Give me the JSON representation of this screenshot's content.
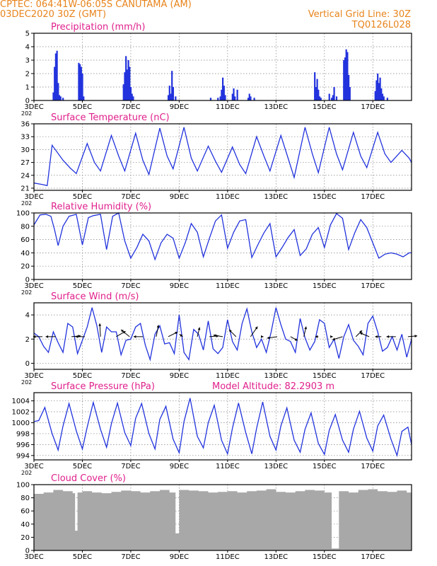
{
  "header": {
    "station": "CPTEC:   064:41W-06:05S   CANUTAMA (AM)",
    "date": "03DEC2020 30Z (GMT)",
    "grid_line": "Vertical Grid Line: 30Z",
    "code": "TQ0126L028",
    "model_altitude": "Model Altitude: 82.2903 m"
  },
  "colors": {
    "line": "#2233dd",
    "title": "#e0208c",
    "header": "#e8841c",
    "cloud": "#a8a8a8",
    "grid": "#808080"
  },
  "x_ticks": [
    "3DEC",
    "5DEC",
    "7DEC",
    "9DEC",
    "11DEC",
    "13DEC",
    "15DEC",
    "17DEC"
  ],
  "stub_label": "202",
  "chart_data": [
    {
      "type": "bar",
      "title": "Precipitation (mm/h)",
      "xlim": [
        0,
        15.6
      ],
      "ylim": [
        0,
        5
      ],
      "yticks": [
        "0",
        "1",
        "2",
        "3",
        "4",
        "5"
      ],
      "x": [
        0.8,
        0.85,
        0.9,
        0.95,
        1.0,
        1.05,
        1.1,
        1.2,
        1.85,
        1.9,
        1.95,
        2.0,
        2.05,
        3.7,
        3.75,
        3.8,
        3.85,
        3.9,
        3.95,
        4.0,
        4.05,
        4.1,
        5.55,
        5.6,
        5.65,
        5.7,
        5.75,
        5.85,
        7.3,
        7.6,
        7.7,
        7.75,
        7.8,
        7.85,
        7.9,
        8.2,
        8.25,
        8.3,
        8.4,
        8.85,
        8.9,
        8.95,
        9.1,
        11.6,
        11.65,
        11.7,
        11.75,
        11.8,
        11.85,
        12.2,
        12.3,
        12.35,
        12.4,
        12.5,
        12.8,
        12.85,
        12.9,
        12.95,
        13.0,
        13.05,
        14.1,
        14.15,
        14.2,
        14.25,
        14.3,
        14.35,
        14.4,
        14.45,
        14.6
      ],
      "values": [
        0.6,
        2.5,
        3.5,
        3.7,
        1.3,
        0.4,
        0.3,
        0.2,
        2.8,
        2.7,
        2.5,
        2.0,
        0.3,
        1.2,
        2.1,
        3.3,
        2.3,
        3.0,
        2.5,
        1.0,
        0.5,
        0.3,
        0.4,
        1.1,
        0.5,
        2.2,
        1.0,
        0.3,
        0.2,
        0.2,
        0.3,
        0.8,
        1.7,
        1.1,
        0.4,
        0.5,
        0.9,
        0.3,
        0.8,
        0.2,
        0.5,
        0.3,
        0.2,
        2.1,
        1.0,
        1.6,
        0.8,
        0.3,
        0.2,
        0.5,
        0.2,
        0.4,
        1.0,
        0.3,
        3.0,
        3.2,
        3.8,
        3.6,
        1.9,
        1.0,
        0.7,
        1.5,
        2.0,
        1.3,
        1.7,
        0.9,
        0.5,
        0.3,
        0.2
      ]
    },
    {
      "type": "line",
      "title": "Surface Temperature (nC)",
      "xlim": [
        0,
        15.6
      ],
      "ylim": [
        20.5,
        36
      ],
      "yticks": [
        "21",
        "24",
        "27",
        "30",
        "33",
        "36"
      ],
      "x": [
        0.0,
        0.3,
        0.55,
        0.75,
        1.2,
        1.5,
        1.75,
        2.2,
        2.5,
        2.75,
        3.2,
        3.5,
        3.75,
        4.2,
        4.5,
        4.75,
        5.2,
        5.5,
        5.75,
        6.2,
        6.5,
        6.75,
        7.2,
        7.5,
        7.75,
        8.2,
        8.5,
        8.75,
        9.2,
        9.5,
        9.75,
        10.2,
        10.5,
        10.75,
        11.2,
        11.5,
        11.75,
        12.2,
        12.5,
        12.75,
        13.2,
        13.5,
        13.75,
        14.2,
        14.5,
        14.75,
        15.2,
        15.5,
        15.6
      ],
      "values": [
        22.2,
        21.9,
        21.6,
        31.0,
        27.5,
        25.7,
        24.4,
        31.4,
        27.0,
        25.0,
        33.3,
        28.5,
        25.0,
        33.8,
        27.5,
        24.2,
        35.0,
        28.5,
        25.5,
        35.2,
        28.0,
        25.0,
        30.8,
        27.3,
        24.7,
        30.6,
        26.5,
        24.4,
        33.0,
        28.5,
        25.0,
        33.3,
        28.0,
        23.5,
        35.2,
        29.0,
        24.6,
        35.2,
        29.0,
        25.3,
        34.0,
        28.5,
        25.8,
        34.0,
        29.0,
        27.0,
        29.8,
        28.0,
        27.0
      ]
    },
    {
      "type": "line",
      "title": "Relative Humidity (%)",
      "xlim": [
        0,
        15.6
      ],
      "ylim": [
        0,
        100
      ],
      "yticks": [
        "0",
        "20",
        "40",
        "60",
        "80",
        "100"
      ],
      "x": [
        0.0,
        0.25,
        0.5,
        0.7,
        0.85,
        1.0,
        1.2,
        1.45,
        1.75,
        2.0,
        2.25,
        2.45,
        2.75,
        3.0,
        3.25,
        3.5,
        3.75,
        4.0,
        4.25,
        4.5,
        4.75,
        5.0,
        5.25,
        5.5,
        5.75,
        6.0,
        6.25,
        6.5,
        6.75,
        7.0,
        7.25,
        7.5,
        7.75,
        8.0,
        8.25,
        8.5,
        8.75,
        9.0,
        9.25,
        9.5,
        9.75,
        10.0,
        10.25,
        10.5,
        10.75,
        11.0,
        11.25,
        11.5,
        11.75,
        12.0,
        12.25,
        12.5,
        12.75,
        13.0,
        13.25,
        13.5,
        13.75,
        14.0,
        14.25,
        14.5,
        14.75,
        15.0,
        15.25,
        15.5,
        15.6
      ],
      "values": [
        82,
        97,
        98,
        95,
        75,
        51,
        80,
        95,
        98,
        52,
        93,
        96,
        98,
        45,
        95,
        100,
        58,
        32,
        48,
        68,
        58,
        30,
        55,
        68,
        62,
        32,
        55,
        84,
        71,
        34,
        62,
        88,
        97,
        47,
        71,
        88,
        90,
        33,
        52,
        70,
        84,
        34,
        48,
        63,
        75,
        36,
        46,
        68,
        78,
        48,
        82,
        99,
        92,
        45,
        70,
        90,
        78,
        55,
        32,
        38,
        40,
        38,
        34,
        40,
        40
      ]
    },
    {
      "type": "line",
      "title": "Surface Wind (m/s)",
      "xlim": [
        0,
        15.6
      ],
      "ylim": [
        -0.5,
        5
      ],
      "yticks": [
        "0",
        "2",
        "4"
      ],
      "x": [
        0.0,
        0.2,
        0.4,
        0.6,
        0.8,
        1.0,
        1.2,
        1.4,
        1.6,
        1.8,
        2.0,
        2.2,
        2.4,
        2.6,
        2.8,
        3.0,
        3.2,
        3.4,
        3.6,
        3.8,
        4.0,
        4.2,
        4.4,
        4.6,
        4.8,
        5.0,
        5.2,
        5.4,
        5.6,
        5.8,
        6.0,
        6.2,
        6.4,
        6.6,
        6.8,
        7.0,
        7.2,
        7.4,
        7.6,
        7.8,
        8.0,
        8.2,
        8.4,
        8.6,
        8.8,
        9.0,
        9.2,
        9.4,
        9.6,
        9.8,
        10.0,
        10.2,
        10.4,
        10.6,
        10.8,
        11.0,
        11.2,
        11.4,
        11.6,
        11.8,
        12.0,
        12.2,
        12.4,
        12.6,
        12.8,
        13.0,
        13.2,
        13.4,
        13.6,
        13.8,
        14.0,
        14.2,
        14.4,
        14.6,
        14.8,
        15.0,
        15.2,
        15.4,
        15.6
      ],
      "values": [
        2.5,
        2.2,
        1.4,
        0.9,
        2.6,
        1.7,
        0.9,
        3.3,
        3.0,
        0.8,
        1.9,
        3.0,
        4.6,
        3.1,
        0.9,
        3.0,
        2.6,
        2.6,
        0.7,
        1.9,
        2.0,
        3.0,
        3.3,
        1.5,
        0.3,
        2.4,
        3.1,
        1.6,
        1.7,
        0.8,
        4.0,
        0.9,
        0.3,
        2.8,
        2.4,
        1.1,
        3.5,
        1.2,
        0.8,
        1.3,
        3.6,
        1.8,
        1.1,
        3.3,
        4.5,
        2.6,
        1.3,
        2.0,
        0.9,
        2.6,
        4.6,
        3.2,
        2.0,
        1.8,
        0.9,
        3.7,
        2.1,
        1.1,
        1.8,
        3.6,
        3.3,
        1.3,
        2.0,
        0.4,
        2.2,
        3.2,
        1.9,
        1.4,
        0.7,
        3.3,
        3.9,
        2.6,
        1.0,
        1.3,
        2.2,
        1.1,
        2.4,
        0.5,
        2.0
      ],
      "vectors": {
        "x": [
          0.35,
          0.9,
          1.55,
          2.1,
          2.75,
          3.4,
          3.95,
          4.5,
          5.05,
          5.55,
          6.15,
          6.75,
          7.25,
          7.8,
          8.35,
          8.95,
          9.45,
          10.05,
          10.6,
          11.15,
          11.75,
          12.25,
          12.75,
          13.3,
          13.85,
          14.35,
          14.95,
          15.45
        ],
        "u": [
          -1.2,
          -1.3,
          1.2,
          -1.2,
          -0.1,
          1.2,
          -1.1,
          -1.2,
          0.3,
          1.2,
          -0.4,
          0.3,
          1.2,
          -1.2,
          -0.9,
          0.9,
          0.1,
          -1.3,
          0.9,
          0.3,
          -0.4,
          0.3,
          -1.3,
          0.8,
          -1.2,
          -0.8,
          -1.2,
          1.2
        ],
        "v": [
          0.0,
          0.0,
          0.1,
          0.0,
          1.7,
          0.7,
          0.9,
          0.0,
          1.5,
          0.6,
          0.3,
          1.2,
          0.1,
          0.2,
          0.9,
          1.3,
          0.0,
          -0.2,
          -0.5,
          1.3,
          0.0,
          0.0,
          -0.4,
          0.8,
          0.5,
          0.0,
          0.0,
          0.1
        ]
      }
    },
    {
      "type": "line",
      "title": "Surface Pressure (hPa)",
      "xlim": [
        0,
        15.6
      ],
      "ylim": [
        993.2,
        1005.5
      ],
      "yticks": [
        "994",
        "996",
        "998",
        "1000",
        "1002",
        "1004"
      ],
      "x": [
        0.0,
        0.2,
        0.45,
        0.75,
        1.0,
        1.2,
        1.45,
        1.75,
        2.0,
        2.2,
        2.45,
        2.75,
        3.0,
        3.2,
        3.45,
        3.75,
        4.0,
        4.2,
        4.45,
        4.75,
        5.0,
        5.2,
        5.45,
        5.75,
        6.0,
        6.2,
        6.45,
        6.75,
        7.0,
        7.2,
        7.45,
        7.75,
        8.0,
        8.2,
        8.45,
        8.75,
        9.0,
        9.2,
        9.45,
        9.75,
        10.0,
        10.2,
        10.45,
        10.75,
        11.0,
        11.2,
        11.45,
        11.75,
        12.0,
        12.2,
        12.45,
        12.75,
        13.0,
        13.2,
        13.45,
        13.75,
        14.0,
        14.2,
        14.45,
        14.75,
        15.0,
        15.2,
        15.45,
        15.6
      ],
      "values": [
        1000.2,
        1000.4,
        1002.8,
        998.0,
        995.0,
        999.4,
        1003.5,
        998.5,
        995.2,
        999.2,
        1003.7,
        998.8,
        995.5,
        999.8,
        1003.6,
        998.2,
        995.8,
        1000.8,
        1003.5,
        998.0,
        995.2,
        1000.6,
        1003.0,
        997.0,
        994.5,
        1000.2,
        1004.5,
        997.5,
        995.4,
        1000.0,
        1003.2,
        996.8,
        994.3,
        999.0,
        1003.6,
        998.2,
        994.3,
        999.0,
        1003.8,
        997.5,
        995.0,
        999.4,
        1002.7,
        996.8,
        994.6,
        998.8,
        1001.8,
        996.2,
        994.2,
        998.6,
        1001.5,
        996.8,
        994.6,
        998.8,
        1002.1,
        997.2,
        994.8,
        999.4,
        1001.4,
        997.0,
        994.0,
        998.4,
        999.2,
        996.0
      ]
    },
    {
      "type": "bar",
      "title": "Cloud Cover (%)",
      "xlim": [
        0,
        15.6
      ],
      "ylim": [
        0,
        100
      ],
      "yticks": [
        "0",
        "20",
        "40",
        "60",
        "80",
        "100"
      ],
      "x": [
        0.0,
        0.4,
        0.8,
        1.2,
        1.6,
        1.7,
        1.8,
        2.0,
        2.4,
        2.8,
        3.2,
        3.6,
        4.0,
        4.4,
        4.8,
        5.2,
        5.6,
        5.85,
        6.0,
        6.4,
        6.8,
        7.2,
        7.6,
        8.0,
        8.4,
        8.8,
        9.2,
        9.6,
        10.0,
        10.4,
        10.8,
        11.2,
        11.6,
        12.0,
        12.3,
        12.6,
        13.0,
        13.4,
        13.8,
        14.2,
        14.6,
        15.0,
        15.4
      ],
      "values": [
        86,
        88,
        92,
        90,
        87,
        30,
        88,
        90,
        88,
        87,
        89,
        91,
        90,
        88,
        90,
        92,
        88,
        26,
        92,
        91,
        90,
        88,
        89,
        90,
        88,
        90,
        91,
        93,
        89,
        88,
        90,
        92,
        91,
        88,
        3,
        90,
        88,
        92,
        93,
        90,
        89,
        91,
        88
      ]
    }
  ]
}
